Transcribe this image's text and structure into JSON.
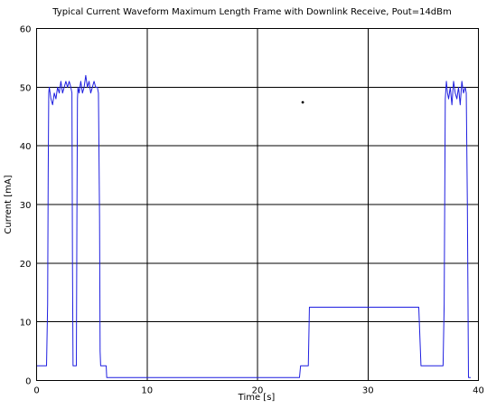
{
  "chart_data": {
    "type": "line",
    "title": "Typical Current Waveform     Maximum Length Frame with Downlink Receive, Pout=14dBm",
    "xlabel": "Time [s]",
    "ylabel": "Current [mA]",
    "xlim": [
      0,
      40
    ],
    "ylim": [
      0,
      60
    ],
    "x_ticks": [
      "0",
      "10",
      "20",
      "30",
      "40"
    ],
    "y_ticks": [
      "0",
      "10",
      "20",
      "30",
      "40",
      "50",
      "60"
    ],
    "grid": true,
    "line_color": "#1f1fe0",
    "series": [
      {
        "x": [
          0,
          0.9,
          1.0,
          1.05,
          1.1,
          1.15,
          1.3,
          1.45,
          1.6,
          1.75,
          1.9,
          2.05,
          2.2,
          2.35,
          2.5,
          2.65,
          2.8,
          2.95,
          3.1,
          3.2,
          3.25,
          3.3,
          3.6,
          3.65,
          3.7,
          3.75,
          3.85,
          4.0,
          4.15,
          4.3,
          4.45,
          4.6,
          4.75,
          4.9,
          5.05,
          5.2,
          5.35,
          5.5,
          5.6,
          5.7,
          5.75,
          5.8,
          6.3,
          6.35,
          6.4,
          20.0,
          23.8,
          23.9,
          24.6,
          24.7,
          34.6,
          34.8,
          35.5,
          36.2,
          36.8,
          36.9,
          37.0,
          37.1,
          37.2,
          37.3,
          37.45,
          37.6,
          37.75,
          37.9,
          38.05,
          38.2,
          38.35,
          38.5,
          38.65,
          38.8,
          38.9,
          39.0,
          39.1,
          39.3
        ],
        "y": [
          2.5,
          2.5,
          13,
          35,
          49,
          50,
          48,
          47,
          49,
          48,
          50,
          49,
          51,
          49,
          50,
          51,
          50,
          51,
          50,
          49,
          20,
          2.5,
          2.5,
          28,
          48,
          50,
          49,
          51,
          49,
          50,
          52,
          50,
          51,
          49,
          50,
          51,
          50,
          50,
          49,
          28,
          5,
          2.5,
          2.5,
          0.5,
          0.5,
          0.5,
          0.5,
          2.5,
          2.5,
          12.5,
          12.5,
          2.5,
          2.5,
          2.5,
          2.5,
          13,
          48,
          51,
          49,
          48,
          50,
          47,
          51,
          49,
          48,
          50,
          47,
          51,
          49,
          50,
          49,
          30,
          0.5,
          0.5
        ]
      }
    ],
    "annotations": [
      {
        "text": "•",
        "x": 24.1,
        "y": 47.5
      }
    ]
  }
}
